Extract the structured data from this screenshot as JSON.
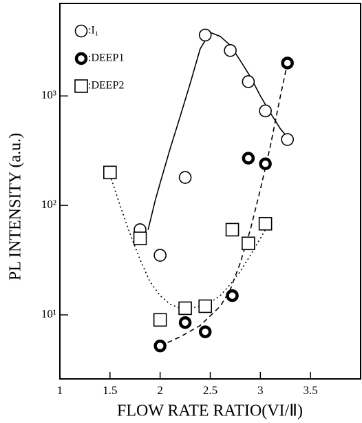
{
  "chart_data": {
    "type": "scatter",
    "x_label": "FLOW RATE RATIO(VI/Ⅱ)",
    "y_label": "PL INTENSITY (a.u.)",
    "xlim": [
      1,
      4
    ],
    "xticks": [
      1,
      1.5,
      2,
      2.5,
      3,
      3.5
    ],
    "ylim": [
      2.6,
      7000
    ],
    "log_y": true,
    "yticks": [
      {
        "value": 10,
        "label": "10¹"
      },
      {
        "value": 100,
        "label": "10²"
      },
      {
        "value": 1000,
        "label": "10³"
      }
    ],
    "legend": "upper-left",
    "series": [
      {
        "name": ":I₁",
        "color": "#000000",
        "marker": "open-circle",
        "linestyle": "solid",
        "x": [
          1.8,
          2.0,
          2.25,
          2.45,
          2.7,
          2.88,
          3.05,
          3.27
        ],
        "values": [
          60,
          35,
          180,
          3600,
          2600,
          1350,
          730,
          400
        ],
        "fit": {
          "x": [
            1.88,
            1.95,
            2.0,
            2.1,
            2.2,
            2.3,
            2.4,
            2.5,
            2.6,
            2.7,
            2.8,
            2.9,
            3.0,
            3.1,
            3.2,
            3.27
          ],
          "y": [
            60,
            110,
            160,
            330,
            650,
            1300,
            2700,
            3800,
            3500,
            2900,
            2100,
            1500,
            1000,
            700,
            500,
            420
          ]
        }
      },
      {
        "name": ":DEEP1",
        "color": "#000000",
        "marker": "thick-circle",
        "linestyle": "dashed",
        "x": [
          2.0,
          2.25,
          2.45,
          2.72,
          2.88,
          3.05,
          3.27
        ],
        "values": [
          5.2,
          8.5,
          7,
          15,
          270,
          240,
          2000
        ],
        "fit": {
          "x": [
            2.0,
            2.2,
            2.4,
            2.6,
            2.7,
            2.8,
            2.9,
            3.0,
            3.1,
            3.2,
            3.27
          ],
          "y": [
            5.2,
            6.3,
            8,
            12,
            17,
            30,
            60,
            140,
            350,
            1000,
            2000
          ]
        }
      },
      {
        "name": ":DEEP2",
        "color": "#000000",
        "marker": "square",
        "linestyle": "dotted",
        "x": [
          1.5,
          1.8,
          2.0,
          2.25,
          2.45,
          2.72,
          2.88,
          3.05
        ],
        "values": [
          200,
          50,
          9,
          11.5,
          12,
          60,
          45,
          68
        ],
        "fit": {
          "x": [
            1.5,
            1.6,
            1.7,
            1.8,
            1.9,
            2.0,
            2.1,
            2.2,
            2.3,
            2.4,
            2.5,
            2.6,
            2.7,
            2.8,
            2.9,
            3.0,
            3.05
          ],
          "y": [
            190,
            100,
            55,
            32,
            20,
            15,
            12.5,
            11.5,
            11.5,
            12,
            13,
            15,
            19,
            25,
            35,
            50,
            60
          ]
        }
      }
    ]
  }
}
